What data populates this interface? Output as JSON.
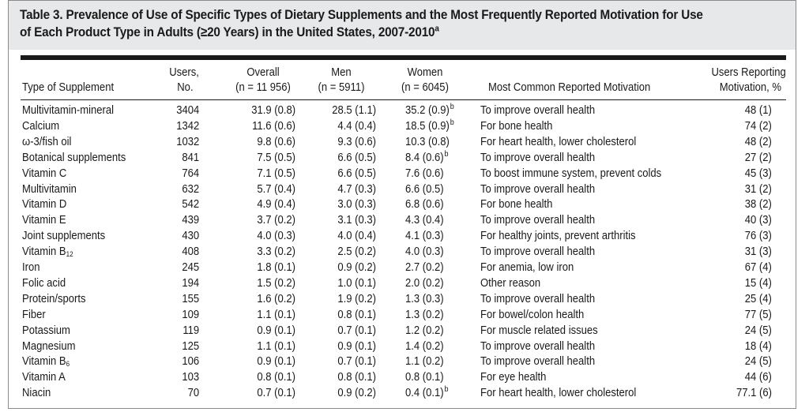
{
  "table": {
    "title_line1": "Table 3. Prevalence of Use of Specific Types of Dietary Supplements and the Most Frequently Reported Motivation for Use",
    "title_line2_prefix": "of Each Product Type in Adults (",
    "title_ge": "≥",
    "title_line2_suffix": "20 Years) in the United States, 2007-2010",
    "title_footnote": "a",
    "headers": {
      "type": "Type of Supplement",
      "users_top": "Users,",
      "users_bottom": "No.",
      "overall_top": "Overall",
      "overall_bottom": "(n = 11 956)",
      "men_top": "Men",
      "men_bottom": "(n = 5911)",
      "women_top": "Women",
      "women_bottom": "(n = 6045)",
      "motivation": "Most Common Reported Motivation",
      "pct_top": "Users Reporting",
      "pct_bottom": "Motivation, %"
    },
    "rows": [
      {
        "type": "Multivitamin-mineral",
        "users": "3404",
        "overall": "31.9 (0.8)",
        "men": "28.5 (1.1)",
        "women": "35.2 (0.9)",
        "women_note": "b",
        "motivation": "To improve overall health",
        "pct": "48 (1)"
      },
      {
        "type": "Calcium",
        "users": "1342",
        "overall": "11.6 (0.6)",
        "men": "4.4 (0.4)",
        "women": "18.5 (0.9)",
        "women_note": "b",
        "motivation": "For bone health",
        "pct": "74 (2)"
      },
      {
        "type": "ω-3/fish oil",
        "users": "1032",
        "overall": "9.8 (0.6)",
        "men": "9.3 (0.6)",
        "women": "10.3 (0.8)",
        "women_note": "",
        "motivation": "For heart health, lower cholesterol",
        "pct": "48 (2)"
      },
      {
        "type": "Botanical supplements",
        "users": "841",
        "overall": "7.5 (0.5)",
        "men": "6.6 (0.5)",
        "women": "8.4 (0.6)",
        "women_note": "b",
        "motivation": "To improve overall health",
        "pct": "27 (2)"
      },
      {
        "type": "Vitamin C",
        "users": "764",
        "overall": "7.1 (0.5)",
        "men": "6.6 (0.5)",
        "women": "7.6 (0.6)",
        "women_note": "",
        "motivation": "To boost immune system, prevent colds",
        "pct": "45 (3)"
      },
      {
        "type": "Multivitamin",
        "users": "632",
        "overall": "5.7 (0.4)",
        "men": "4.7 (0.3)",
        "women": "6.6 (0.5)",
        "women_note": "",
        "motivation": "To improve overall health",
        "pct": "31 (2)"
      },
      {
        "type": "Vitamin D",
        "users": "542",
        "overall": "4.9 (0.4)",
        "men": "3.0 (0.3)",
        "women": "6.8 (0.6)",
        "women_note": "",
        "motivation": "For bone health",
        "pct": "38 (2)"
      },
      {
        "type": "Vitamin E",
        "users": "439",
        "overall": "3.7 (0.2)",
        "men": "3.1 (0.3)",
        "women": "4.3 (0.4)",
        "women_note": "",
        "motivation": "To improve overall health",
        "pct": "40 (3)"
      },
      {
        "type": "Joint supplements",
        "users": "430",
        "overall": "4.0 (0.3)",
        "men": "4.0 (0.4)",
        "women": "4.1 (0.3)",
        "women_note": "",
        "motivation": "For healthy joints, prevent arthritis",
        "pct": "76 (3)"
      },
      {
        "type": "Vitamin B",
        "type_sub": "12",
        "users": "408",
        "overall": "3.3 (0.2)",
        "men": "2.5 (0.2)",
        "women": "4.0 (0.3)",
        "women_note": "",
        "motivation": "To improve overall health",
        "pct": "31 (3)"
      },
      {
        "type": "Iron",
        "users": "245",
        "overall": "1.8 (0.1)",
        "men": "0.9 (0.2)",
        "women": "2.7 (0.2)",
        "women_note": "",
        "motivation": "For anemia, low iron",
        "pct": "67 (4)"
      },
      {
        "type": "Folic acid",
        "users": "194",
        "overall": "1.5 (0.2)",
        "men": "1.0 (0.1)",
        "women": "2.0 (0.2)",
        "women_note": "",
        "motivation": "Other reason",
        "pct": "15 (4)"
      },
      {
        "type": "Protein/sports",
        "users": "155",
        "overall": "1.6 (0.2)",
        "men": "1.9 (0.2)",
        "women": "1.3 (0.3)",
        "women_note": "",
        "motivation": "To improve overall health",
        "pct": "25 (4)"
      },
      {
        "type": "Fiber",
        "users": "109",
        "overall": "1.1 (0.1)",
        "men": "0.8 (0.1)",
        "women": "1.3 (0.2)",
        "women_note": "",
        "motivation": "For bowel/colon health",
        "pct": "77 (5)"
      },
      {
        "type": "Potassium",
        "users": "119",
        "overall": "0.9 (0.1)",
        "men": "0.7 (0.1)",
        "women": "1.2 (0.2)",
        "women_note": "",
        "motivation": "For muscle related issues",
        "pct": "24 (5)"
      },
      {
        "type": "Magnesium",
        "users": "125",
        "overall": "1.1 (0.1)",
        "men": "0.9 (0.1)",
        "women": "1.4 (0.2)",
        "women_note": "",
        "motivation": "To improve overall health",
        "pct": "18 (4)"
      },
      {
        "type": "Vitamin B",
        "type_sub": "6",
        "users": "106",
        "overall": "0.9 (0.1)",
        "men": "0.7 (0.1)",
        "women": "1.1 (0.2)",
        "women_note": "",
        "motivation": "To improve overall health",
        "pct": "24 (5)"
      },
      {
        "type": "Vitamin A",
        "users": "103",
        "overall": "0.8 (0.1)",
        "men": "0.8 (0.1)",
        "women": "0.8 (0.1)",
        "women_note": "",
        "motivation": "For eye health",
        "pct": "44 (6)"
      },
      {
        "type": "Niacin",
        "users": "70",
        "overall": "0.7 (0.1)",
        "men": "0.9 (0.2)",
        "women": "0.4 (0.1)",
        "women_note": "b",
        "motivation": "For heart health, lower cholesterol",
        "pct": "77.1 (6)"
      }
    ]
  },
  "colors": {
    "title_band": "#e7e8ea",
    "text": "#1a1a1a",
    "border": "#8a8a8a"
  }
}
